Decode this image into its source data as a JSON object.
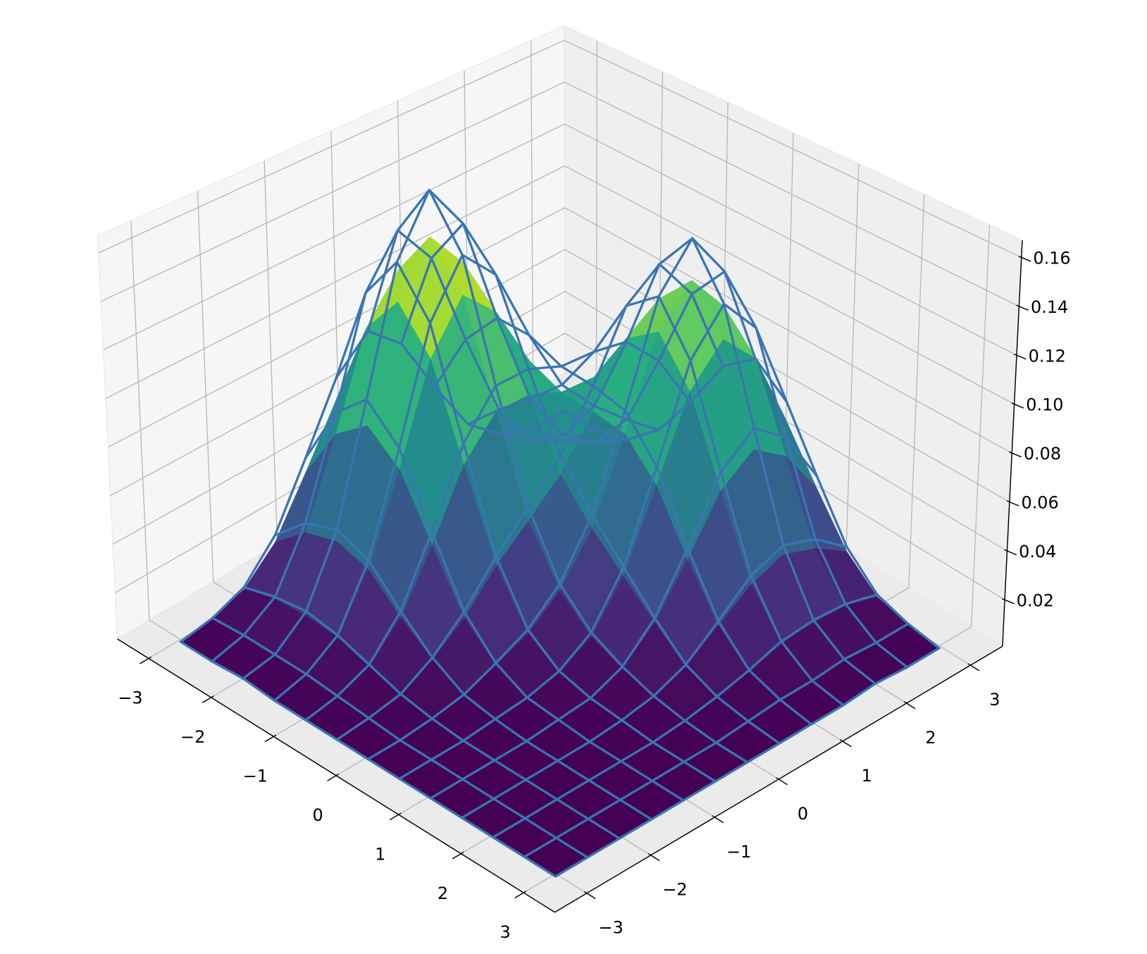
{
  "chart_data": {
    "type": "surface3d",
    "x": [
      -3,
      -2.5,
      -2,
      -1.5,
      -1,
      -0.5,
      0,
      0.5,
      1,
      1.5,
      2,
      2.5,
      3
    ],
    "y": [
      -3,
      -2.5,
      -2,
      -1.5,
      -1,
      -0.5,
      0,
      0.5,
      1,
      1.5,
      2,
      2.5,
      3
    ],
    "xlim": [
      -3.5,
      3.5
    ],
    "ylim": [
      -3.5,
      3.5
    ],
    "zlim": [
      0.001,
      0.167
    ],
    "xticks": [
      {
        "value": -3,
        "label": "−3"
      },
      {
        "value": -2,
        "label": "−2"
      },
      {
        "value": -1,
        "label": "−1"
      },
      0,
      1,
      2,
      3
    ],
    "yticks": [
      {
        "value": -3,
        "label": "−3"
      },
      {
        "value": -2,
        "label": "−2"
      },
      {
        "value": -1,
        "label": "−1"
      },
      0,
      1,
      2,
      3
    ],
    "zticks": [
      0.02,
      0.04,
      0.06,
      0.08,
      {
        "value": 0.1,
        "label": "0.10"
      },
      0.12,
      0.14,
      0.16
    ],
    "grid": true,
    "series": [
      {
        "type": "surface",
        "colormap": "viridis",
        "z": [
          [
            0,
            0.002,
            0.006,
            0.018,
            0.04,
            0.064,
            0.075,
            0.064,
            0.04,
            0.018,
            0.007,
            0.002,
            0.001
          ],
          [
            0,
            0.003,
            0.01,
            0.03,
            0.064,
            0.102,
            0.12,
            0.103,
            0.066,
            0.032,
            0.012,
            0.004,
            0.002
          ],
          [
            0.001,
            0.003,
            0.011,
            0.034,
            0.075,
            0.12,
            0.141,
            0.123,
            0.081,
            0.043,
            0.022,
            0.011,
            0.005
          ],
          [
            0,
            0.003,
            0.01,
            0.03,
            0.064,
            0.103,
            0.123,
            0.109,
            0.081,
            0.055,
            0.04,
            0.028,
            0.017
          ],
          [
            0,
            0.002,
            0.006,
            0.018,
            0.04,
            0.066,
            0.081,
            0.081,
            0.075,
            0.074,
            0.072,
            0.058,
            0.035
          ],
          [
            0,
            0.001,
            0.003,
            0.009,
            0.018,
            0.032,
            0.043,
            0.055,
            0.074,
            0.098,
            0.108,
            0.09,
            0.056
          ],
          [
            0,
            0,
            0.001,
            0.003,
            0.007,
            0.012,
            0.022,
            0.04,
            0.072,
            0.108,
            0.123,
            0.105,
            0.066
          ],
          [
            0,
            0,
            0,
            0.001,
            0.002,
            0.004,
            0.011,
            0.028,
            0.058,
            0.09,
            0.105,
            0.09,
            0.056
          ],
          [
            0,
            0,
            0,
            0,
            0.001,
            0.002,
            0.006,
            0.017,
            0.035,
            0.056,
            0.066,
            0.056,
            0.035
          ],
          [
            0,
            0,
            0,
            0,
            0,
            0.001,
            0.003,
            0.007,
            0.016,
            0.025,
            0.03,
            0.025,
            0.016
          ],
          [
            0,
            0,
            0,
            0,
            0,
            0,
            0.001,
            0.003,
            0.005,
            0.009,
            0.01,
            0.009,
            0.005
          ],
          [
            0,
            0,
            0,
            0,
            0,
            0,
            0,
            0.001,
            0.002,
            0.002,
            0.003,
            0.002,
            0.002
          ],
          [
            0,
            0,
            0,
            0,
            0,
            0,
            0,
            0,
            0,
            0,
            0.001,
            0,
            0
          ]
        ]
      },
      {
        "type": "wireframe",
        "color": "#3a75b0",
        "z": [
          [
            0,
            0.002,
            0.007,
            0.021,
            0.046,
            0.073,
            0.086,
            0.073,
            0.046,
            0.021,
            0.008,
            0.002,
            0.001
          ],
          [
            0,
            0.003,
            0.011,
            0.034,
            0.073,
            0.117,
            0.137,
            0.118,
            0.075,
            0.036,
            0.014,
            0.005,
            0.002
          ],
          [
            0.001,
            0.003,
            0.013,
            0.039,
            0.086,
            0.137,
            0.161,
            0.14,
            0.092,
            0.049,
            0.025,
            0.013,
            0.006
          ],
          [
            0,
            0.003,
            0.011,
            0.034,
            0.073,
            0.118,
            0.14,
            0.125,
            0.092,
            0.063,
            0.046,
            0.032,
            0.019
          ],
          [
            0,
            0.002,
            0.007,
            0.021,
            0.046,
            0.075,
            0.092,
            0.092,
            0.086,
            0.085,
            0.082,
            0.066,
            0.04
          ],
          [
            0,
            0.001,
            0.003,
            0.01,
            0.021,
            0.036,
            0.049,
            0.063,
            0.085,
            0.112,
            0.123,
            0.103,
            0.064
          ],
          [
            0,
            0,
            0.001,
            0.003,
            0.008,
            0.014,
            0.025,
            0.046,
            0.082,
            0.123,
            0.141,
            0.12,
            0.075
          ],
          [
            0,
            0,
            0,
            0.001,
            0.002,
            0.005,
            0.013,
            0.032,
            0.066,
            0.103,
            0.12,
            0.103,
            0.064
          ],
          [
            0,
            0,
            0,
            0,
            0.001,
            0.002,
            0.007,
            0.019,
            0.04,
            0.064,
            0.075,
            0.064,
            0.04
          ],
          [
            0,
            0,
            0,
            0,
            0,
            0.001,
            0.003,
            0.008,
            0.018,
            0.029,
            0.034,
            0.029,
            0.018
          ],
          [
            0,
            0,
            0,
            0,
            0,
            0,
            0.001,
            0.003,
            0.006,
            0.01,
            0.011,
            0.01,
            0.006
          ],
          [
            0,
            0,
            0,
            0,
            0,
            0,
            0,
            0.001,
            0.002,
            0.002,
            0.003,
            0.002,
            0.002
          ],
          [
            0,
            0,
            0,
            0,
            0,
            0,
            0,
            0,
            0,
            0,
            0.001,
            0,
            0
          ]
        ]
      }
    ]
  }
}
